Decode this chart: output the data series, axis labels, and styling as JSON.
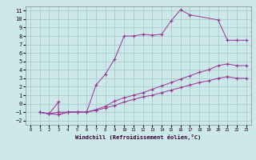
{
  "xlabel": "Windchill (Refroidissement éolien,°C)",
  "bg_color": "#cce8e8",
  "line_color": "#993399",
  "grid_color": "#aacccc",
  "xlim": [
    -0.5,
    23.5
  ],
  "ylim": [
    -2.5,
    11.5
  ],
  "xticks": [
    0,
    1,
    2,
    3,
    4,
    5,
    6,
    7,
    8,
    9,
    10,
    11,
    12,
    13,
    14,
    15,
    16,
    17,
    18,
    19,
    20,
    21,
    22,
    23
  ],
  "yticks": [
    -2,
    -1,
    0,
    1,
    2,
    3,
    4,
    5,
    6,
    7,
    8,
    9,
    10,
    11
  ],
  "series": [
    {
      "x": [
        1,
        2,
        3,
        4,
        5,
        6,
        7,
        8,
        9,
        10,
        11,
        12,
        13,
        14,
        15,
        16,
        17,
        20,
        21,
        22,
        23
      ],
      "y": [
        -1,
        -1.2,
        -1,
        -1,
        -1,
        -1,
        2.2,
        3.5,
        5.3,
        8.0,
        8.0,
        8.2,
        8.1,
        8.2,
        9.8,
        11.1,
        10.5,
        9.9,
        7.5,
        7.5,
        7.5
      ]
    },
    {
      "x": [
        1,
        2,
        3,
        3,
        4,
        5,
        6,
        7,
        8,
        9,
        10,
        11,
        12,
        13,
        14,
        15,
        16,
        17,
        18,
        19,
        20,
        21,
        22,
        23
      ],
      "y": [
        -1,
        -1.2,
        0.2,
        -1.3,
        -1,
        -1,
        -1,
        -0.7,
        -0.3,
        0.3,
        0.7,
        1.0,
        1.3,
        1.7,
        2.1,
        2.5,
        2.9,
        3.3,
        3.7,
        4.0,
        4.5,
        4.7,
        4.5,
        4.5
      ]
    },
    {
      "x": [
        1,
        2,
        3,
        4,
        5,
        6,
        7,
        8,
        9,
        10,
        11,
        12,
        13,
        14,
        15,
        16,
        17,
        18,
        19,
        20,
        21,
        22,
        23
      ],
      "y": [
        -1,
        -1.2,
        -1.3,
        -1,
        -1,
        -1,
        -0.8,
        -0.5,
        -0.2,
        0.2,
        0.5,
        0.8,
        1.0,
        1.3,
        1.6,
        1.9,
        2.2,
        2.5,
        2.7,
        3.0,
        3.2,
        3.0,
        3.0
      ]
    }
  ]
}
